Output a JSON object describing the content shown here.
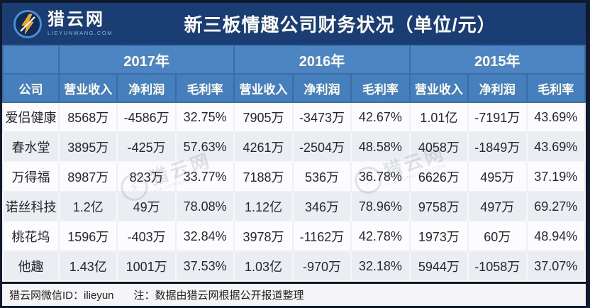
{
  "header": {
    "logo": {
      "brand": "猎云网",
      "domain": "LIEYUNWANG.COM"
    },
    "title": "新三板情趣公司财务状况（单位/元）"
  },
  "chart_data": {
    "type": "table",
    "title": "新三板情趣公司财务状况（单位/元）",
    "unit": "元",
    "company_header": "公司",
    "year_groups": [
      "2017年",
      "2016年",
      "2015年"
    ],
    "metric_headers": [
      "营业收入",
      "净利润",
      "毛利率"
    ],
    "rows": [
      {
        "company": "爱侣健康",
        "values": [
          "8568万",
          "-4586万",
          "32.75%",
          "7905万",
          "-3473万",
          "42.67%",
          "1.01亿",
          "-7191万",
          "43.69%"
        ]
      },
      {
        "company": "春水堂",
        "values": [
          "3895万",
          "-425万",
          "57.63%",
          "4261万",
          "-2504万",
          "48.58%",
          "4058万",
          "-1849万",
          "43.69%"
        ]
      },
      {
        "company": "万得福",
        "values": [
          "8987万",
          "823万",
          "33.77%",
          "7188万",
          "536万",
          "36.78%",
          "6626万",
          "495万",
          "37.19%"
        ]
      },
      {
        "company": "诺丝科技",
        "values": [
          "1.2亿",
          "49万",
          "78.08%",
          "1.12亿",
          "346万",
          "78.96%",
          "9758万",
          "497万",
          "69.27%"
        ]
      },
      {
        "company": "桃花坞",
        "values": [
          "1596万",
          "-403万",
          "32.84%",
          "3978万",
          "-1162万",
          "42.78%",
          "1973万",
          "60万",
          "48.94%"
        ]
      },
      {
        "company": "他趣",
        "values": [
          "1.43亿",
          "1001万",
          "37.53%",
          "1.03亿",
          "-970万",
          "32.18%",
          "5944万",
          "-1058万",
          "37.07%"
        ]
      }
    ]
  },
  "footer": {
    "wechat": "猎云网微信ID：ilieyun",
    "note": "注：数据由猎云网根据公开报道整理"
  },
  "watermark": {
    "brand": "猎云网",
    "domain": "LIEYUNWANG.COM"
  },
  "colors": {
    "frame": "#111a2c",
    "band_navy": "#1a3e74",
    "header_blue": "#4c85c2",
    "header_blue_dark": "#3a6da6",
    "row_white": "#fcfcfe",
    "row_alt": "#eaedf2",
    "bolt_orange": "#f6a01c"
  }
}
